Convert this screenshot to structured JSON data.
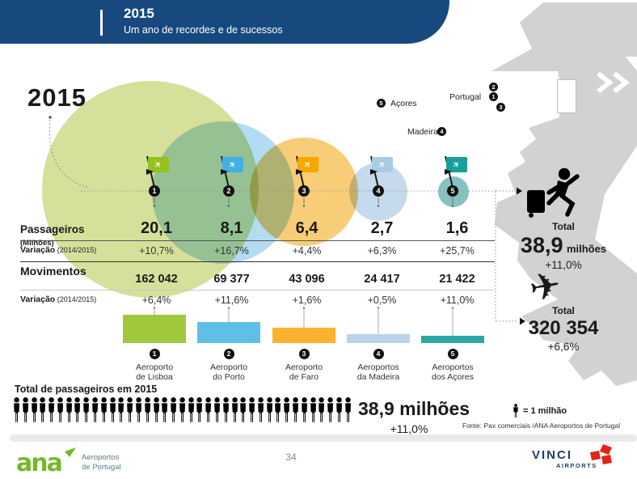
{
  "slide": {
    "header": {
      "title": "2015",
      "subtitle": "Um ano de recordes e de sucessos"
    },
    "big_year": "2015",
    "icons": {
      "plane": "✈"
    },
    "map_labels": {
      "acores": {
        "num": "5",
        "label": "Açores"
      },
      "madeira": {
        "num": "4",
        "label": "Madeira"
      },
      "portugal": {
        "label": "Portugal",
        "nums": [
          "2",
          "1",
          "3"
        ]
      }
    },
    "table": {
      "row_pax_label": "Passageiros",
      "row_pax_suffix": " (Milhões)",
      "row_var1_label": "Variação",
      "row_var1_suffix": " (2014/2015)",
      "row_mov_label": "Movimentos",
      "row_var2_label": "Variação",
      "row_var2_suffix": " (2014/2015)"
    },
    "columns": [
      {
        "num": "1",
        "passengers": "20,1",
        "var_pax": "+10,7%",
        "movements": "162 042",
        "var_mov": "+6,4%",
        "airport1": "Aeroporto",
        "airport2": "de Lisboa",
        "flag_color": "#95C11F",
        "bubble_color": "#D5E09B",
        "bar_color": "#A0C83C"
      },
      {
        "num": "2",
        "passengers": "8,1",
        "var_pax": "+16,7%",
        "movements": "69 377",
        "var_mov": "+11,6%",
        "airport1": "Aeroporto",
        "airport2": "do Porto",
        "flag_color": "#41B0E4",
        "bubble_color": "#B3DCF2",
        "bar_color": "#5FC0E7"
      },
      {
        "num": "3",
        "passengers": "6,4",
        "var_pax": "+4,4%",
        "movements": "43 096",
        "var_mov": "+1,6%",
        "airport1": "Aeroporto",
        "airport2": "de Faro",
        "flag_color": "#F7A800",
        "bubble_color": "#F8CD78",
        "bar_color": "#FBB22F"
      },
      {
        "num": "4",
        "passengers": "2,7",
        "var_pax": "+6,3%",
        "movements": "24 417",
        "var_mov": "+0,5%",
        "airport1": "Aeroportos",
        "airport2": "da Madeira",
        "flag_color": "#A9CBE6",
        "bubble_color": "#C6DAEE",
        "bar_color": "#B9D3EA"
      },
      {
        "num": "5",
        "passengers": "1,6",
        "var_pax": "+25,7%",
        "movements": "21 422",
        "var_mov": "+11,0%",
        "airport1": "Aeroportos",
        "airport2": "dos Açores",
        "flag_color": "#169F9B",
        "bubble_color": "#87C1C2",
        "bar_color": "#2BA9A5"
      }
    ],
    "totals": {
      "pax": {
        "label": "Total",
        "value": "38,9",
        "unit": "milhões",
        "variation": "+11,0%"
      },
      "movements": {
        "label": "Total",
        "value": "320 354",
        "variation": "+6,6%"
      }
    },
    "bottom": {
      "title": "Total de passageiros em 2015",
      "people_count": 39,
      "value": "38,9 milhões",
      "variation": "+11,0%",
      "legend": "= 1 milhão",
      "source": "Fonte: Pax comerciais /ANA Aeroportos de Portugal"
    },
    "footer": {
      "ana_logo_text": "ana",
      "ana_sub1": "Aeroportos",
      "ana_sub2": "de Portugal",
      "page_number": "34",
      "vinci_word": "VINCI",
      "vinci_sub": "AIRPORTS"
    },
    "colors": {
      "header_bg": "#17497F",
      "map_gray": "#D2D2D2",
      "ana_green": "#76B82A",
      "vinci_blue": "#1D3D6B",
      "vinci_red": "#E1251B"
    }
  },
  "chart_data": [
    {
      "type": "table",
      "title": "2015 — Um ano de recordes e de sucessos",
      "categories": [
        "Aeroporto de Lisboa",
        "Aeroporto do Porto",
        "Aeroporto de Faro",
        "Aeroportos da Madeira",
        "Aeroportos dos Açores"
      ],
      "series": [
        {
          "name": "Passageiros (Milhões)",
          "values": [
            20.1,
            8.1,
            6.4,
            2.7,
            1.6
          ]
        },
        {
          "name": "Variação Passageiros (2014/2015) %",
          "values": [
            10.7,
            16.7,
            4.4,
            6.3,
            25.7
          ]
        },
        {
          "name": "Movimentos",
          "values": [
            162042,
            69377,
            43096,
            24417,
            21422
          ]
        },
        {
          "name": "Variação Movimentos (2014/2015) %",
          "values": [
            6.4,
            11.6,
            1.6,
            0.5,
            11.0
          ]
        }
      ],
      "totals": {
        "passageiros_milhoes": 38.9,
        "passageiros_variacao_pct": 11.0,
        "movimentos": 320354,
        "movimentos_variacao_pct": 6.6
      }
    },
    {
      "type": "bar",
      "title": "Dimensão relativa por aeroporto (bolhas e barras)",
      "categories": [
        "Aeroporto de Lisboa",
        "Aeroporto do Porto",
        "Aeroporto de Faro",
        "Aeroportos da Madeira",
        "Aeroportos dos Açores"
      ],
      "values": [
        20.1,
        8.1,
        6.4,
        2.7,
        1.6
      ],
      "xlabel": "",
      "ylabel": "Passageiros (Milhões)",
      "legend_position": "none",
      "grid": false
    },
    {
      "type": "bar",
      "title": "Total de passageiros em 2015 (pictograma)",
      "categories": [
        "Total"
      ],
      "values": [
        38.9
      ],
      "unit": "milhões",
      "icon_equals": "1 milhão",
      "icons_shown": 39
    }
  ]
}
